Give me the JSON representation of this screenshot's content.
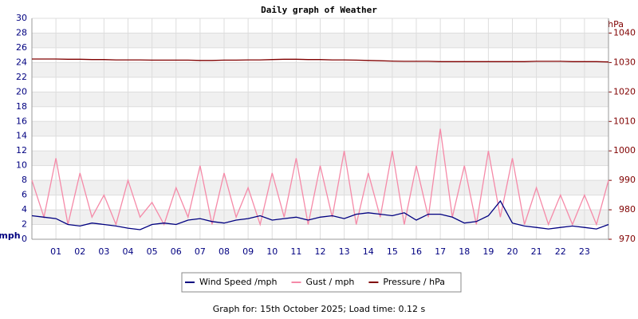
{
  "chart_data": {
    "type": "line",
    "title": "Daily graph of Weather",
    "y_label": "mph",
    "y2_label": "hPa",
    "footer": "Graph for: 15th October 2025; Load time: 0.12 s",
    "x": [
      0,
      0.5,
      1,
      1.5,
      2,
      2.5,
      3,
      3.5,
      4,
      4.5,
      5,
      5.5,
      6,
      6.5,
      7,
      7.5,
      8,
      8.5,
      9,
      9.5,
      10,
      10.5,
      11,
      11.5,
      12,
      12.5,
      13,
      13.5,
      14,
      14.5,
      15,
      15.5,
      16,
      16.5,
      17,
      17.5,
      18,
      18.5,
      19,
      19.5,
      20,
      20.5,
      21,
      21.5,
      22,
      22.5,
      23,
      23.5,
      24
    ],
    "xlim": [
      0,
      24
    ],
    "xticks": [
      {
        "value": 1,
        "label": "01"
      },
      {
        "value": 2,
        "label": "02"
      },
      {
        "value": 3,
        "label": "03"
      },
      {
        "value": 4,
        "label": "04"
      },
      {
        "value": 5,
        "label": "05"
      },
      {
        "value": 6,
        "label": "06"
      },
      {
        "value": 7,
        "label": "07"
      },
      {
        "value": 8,
        "label": "08"
      },
      {
        "value": 9,
        "label": "09"
      },
      {
        "value": 10,
        "label": "10"
      },
      {
        "value": 11,
        "label": "11"
      },
      {
        "value": 12,
        "label": "12"
      },
      {
        "value": 13,
        "label": "13"
      },
      {
        "value": 14,
        "label": "14"
      },
      {
        "value": 15,
        "label": "15"
      },
      {
        "value": 16,
        "label": "16"
      },
      {
        "value": 17,
        "label": "17"
      },
      {
        "value": 18,
        "label": "18"
      },
      {
        "value": 19,
        "label": "19"
      },
      {
        "value": 20,
        "label": "20"
      },
      {
        "value": 21,
        "label": "21"
      },
      {
        "value": 22,
        "label": "22"
      },
      {
        "value": 23,
        "label": "23"
      }
    ],
    "ylim": [
      0,
      30
    ],
    "yticks": [
      0,
      2,
      4,
      6,
      8,
      10,
      12,
      14,
      16,
      18,
      20,
      22,
      24,
      26,
      28,
      30
    ],
    "y2lim": [
      970,
      1045
    ],
    "y2ticks": [
      970,
      980,
      990,
      1000,
      1010,
      1020,
      1030,
      1040
    ],
    "grid": true,
    "series": [
      {
        "name": "Wind Speed /mph",
        "color": "#000080",
        "values": [
          3.2,
          3,
          2.8,
          2,
          1.8,
          2.2,
          2,
          1.8,
          1.5,
          1.3,
          2,
          2.2,
          2,
          2.6,
          2.8,
          2.4,
          2.2,
          2.6,
          2.8,
          3.2,
          2.6,
          2.8,
          3,
          2.6,
          3,
          3.2,
          2.8,
          3.4,
          3.6,
          3.4,
          3.2,
          3.6,
          2.6,
          3.4,
          3.4,
          3,
          2.2,
          2.4,
          3.2,
          5.2,
          2.2,
          1.8,
          1.6,
          1.4,
          1.6,
          1.8,
          1.6,
          1.4,
          2
        ]
      },
      {
        "name": "Gust / mph",
        "color": "#f58aa8",
        "values": [
          8,
          3,
          11,
          2,
          9,
          3,
          6,
          2,
          8,
          3,
          5,
          2,
          7,
          3,
          10,
          2,
          9,
          3,
          7,
          2,
          9,
          3,
          11,
          2,
          10,
          3,
          12,
          2,
          9,
          3,
          12,
          2,
          10,
          3,
          15,
          3,
          10,
          2,
          12,
          3,
          11,
          2,
          7,
          2,
          6,
          2,
          6,
          2,
          8
        ]
      },
      {
        "name": "Pressure / hPa",
        "color": "#800000",
        "axis": "y2",
        "values": [
          1031.2,
          1031.2,
          1031.2,
          1031.1,
          1031.1,
          1031.0,
          1031.0,
          1030.9,
          1030.9,
          1030.9,
          1030.8,
          1030.8,
          1030.8,
          1030.8,
          1030.7,
          1030.7,
          1030.8,
          1030.8,
          1030.9,
          1030.9,
          1031.0,
          1031.1,
          1031.1,
          1031.0,
          1031.0,
          1030.9,
          1030.9,
          1030.8,
          1030.7,
          1030.6,
          1030.5,
          1030.4,
          1030.4,
          1030.4,
          1030.3,
          1030.3,
          1030.3,
          1030.3,
          1030.3,
          1030.3,
          1030.3,
          1030.3,
          1030.4,
          1030.4,
          1030.4,
          1030.3,
          1030.3,
          1030.3,
          1030.2
        ]
      }
    ]
  }
}
